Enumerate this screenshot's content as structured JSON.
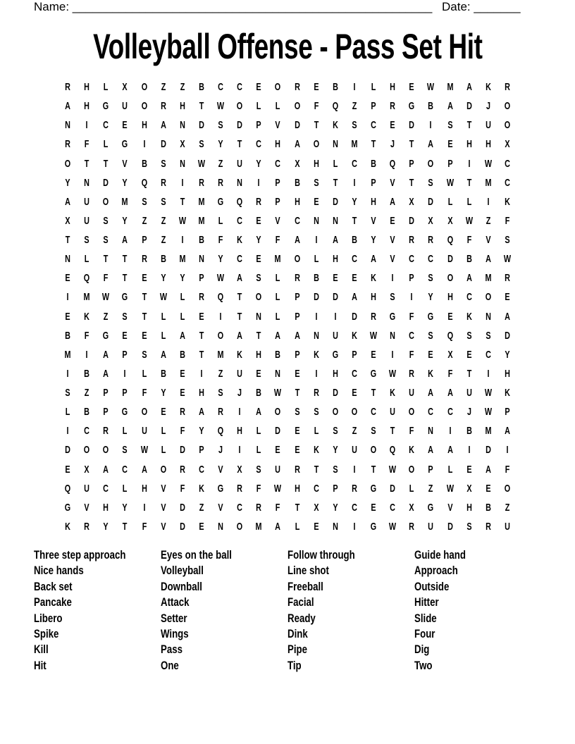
{
  "header": {
    "name_label": "Name: ______________________________________________________",
    "date_label": "Date: _______"
  },
  "title": "Volleyball Offense - Pass Set Hit",
  "grid": [
    "RHLXOZZBCCEOREBILHEWMAKR",
    "AHGUORHTWOLLOFQZPRGBADJO",
    "NICEHANDSDPVDTKSCEDISTUO",
    "RFLGIDXSYTCHAONMTJTAEHHX",
    "OTTVBSNWZUYCXHLCBQPOPIWC",
    "YNDYQRIRRNIPBSTIPVTSWTMC",
    "AUOMSSTMGQRPHEDYHAXDLLIK",
    "XUSYZZWMLCEVCNNTVEDXXWZF",
    "TSSAPZIBFKYFAIABYVRRQFVS",
    "NLTTRBMNYCEMOLHCAVCCDBAW",
    "EQFTEYYPWASLRBEEKIPSOAMR",
    "IMWGTWLRQTOLPDDAHSIYHCOE",
    "EKZSTLLEITNLPIIDRGFGEKNA",
    "BFGEELATOATAANUKWNCSQSSD",
    "MIAPSABTMKHBPKGPEIFEXECY",
    "IBAILBEIZUENEIHCGWRKFTIH",
    "SZPPFYEHSJBWTRDETKUAAUWK",
    "LBPGOERARIAOSSOOCUOCCJWP",
    "ICRLULFYQHLDELSZSTFNIBMA",
    "DOOSWLDPJILEEKYUOQKAAIDI",
    "EXACAORCVXSURTSITWOPLEAF",
    "QUCLHVFKGRFWHCPRGDLZWXEO",
    "GVHYIVDZVCRFTXYCECXGVHBZ",
    "KRYTFVDENOMALENIGWRUDSRU"
  ],
  "word_list": [
    [
      "Three step approach",
      "Nice hands",
      "Back set",
      "Pancake",
      "Libero",
      "Spike",
      "Kill",
      "Hit"
    ],
    [
      "Eyes on the ball",
      "Volleyball",
      "Downball",
      "Attack",
      "Setter",
      "Wings",
      "Pass",
      "One"
    ],
    [
      "Follow through",
      "Line shot",
      "Freeball",
      "Facial",
      "Ready",
      "Dink",
      "Pipe",
      "Tip"
    ],
    [
      "Guide hand",
      "Approach",
      "Outside",
      "Hitter",
      "Slide",
      "Four",
      "Dig",
      "Two"
    ]
  ]
}
